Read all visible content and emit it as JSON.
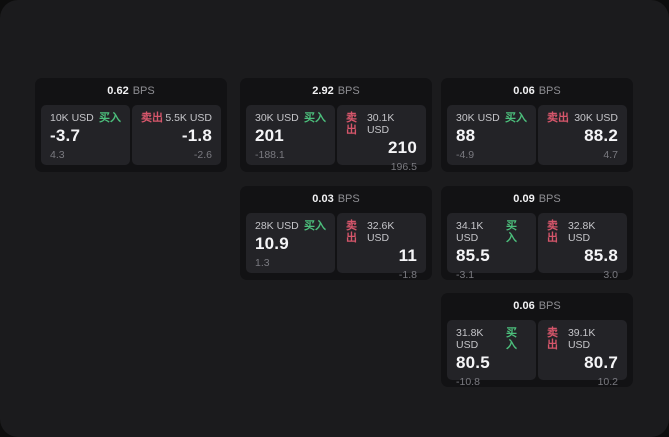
{
  "labels": {
    "bps": "BPS",
    "buy": "买入",
    "sell": "卖出"
  },
  "colors": {
    "frame_bg": "#1b1b1d",
    "card_bg": "#121214",
    "panel_bg": "#232327",
    "buy_green": "#4cbf7c",
    "sell_red": "#d6566b",
    "price_white": "#f5f5f7",
    "muted_gray": "#7a7a80"
  },
  "cards": [
    {
      "bps": "0.62",
      "col": 0,
      "row": 0,
      "buy": {
        "amount": "10K USD",
        "price": "-3.7",
        "delta": "4.3"
      },
      "sell": {
        "amount": "5.5K USD",
        "price": "-1.8",
        "delta": "-2.6"
      }
    },
    {
      "bps": "2.92",
      "col": 1,
      "row": 0,
      "buy": {
        "amount": "30K USD",
        "price": "201",
        "delta": "-188.1"
      },
      "sell": {
        "amount": "30.1K USD",
        "price": "210",
        "delta": "196.5"
      }
    },
    {
      "bps": "0.06",
      "col": 2,
      "row": 0,
      "buy": {
        "amount": "30K USD",
        "price": "88",
        "delta": "-4.9"
      },
      "sell": {
        "amount": "30K USD",
        "price": "88.2",
        "delta": "4.7"
      }
    },
    {
      "bps": "0.03",
      "col": 1,
      "row": 1,
      "buy": {
        "amount": "28K USD",
        "price": "10.9",
        "delta": "1.3"
      },
      "sell": {
        "amount": "32.6K USD",
        "price": "11",
        "delta": "-1.8"
      }
    },
    {
      "bps": "0.09",
      "col": 2,
      "row": 1,
      "buy": {
        "amount": "34.1K USD",
        "price": "85.5",
        "delta": "-3.1"
      },
      "sell": {
        "amount": "32.8K USD",
        "price": "85.8",
        "delta": "3.0"
      }
    },
    {
      "bps": "0.06",
      "col": 2,
      "row": 2,
      "buy": {
        "amount": "31.8K USD",
        "price": "80.5",
        "delta": "-10.8"
      },
      "sell": {
        "amount": "39.1K USD",
        "price": "80.7",
        "delta": "10.2"
      }
    }
  ]
}
